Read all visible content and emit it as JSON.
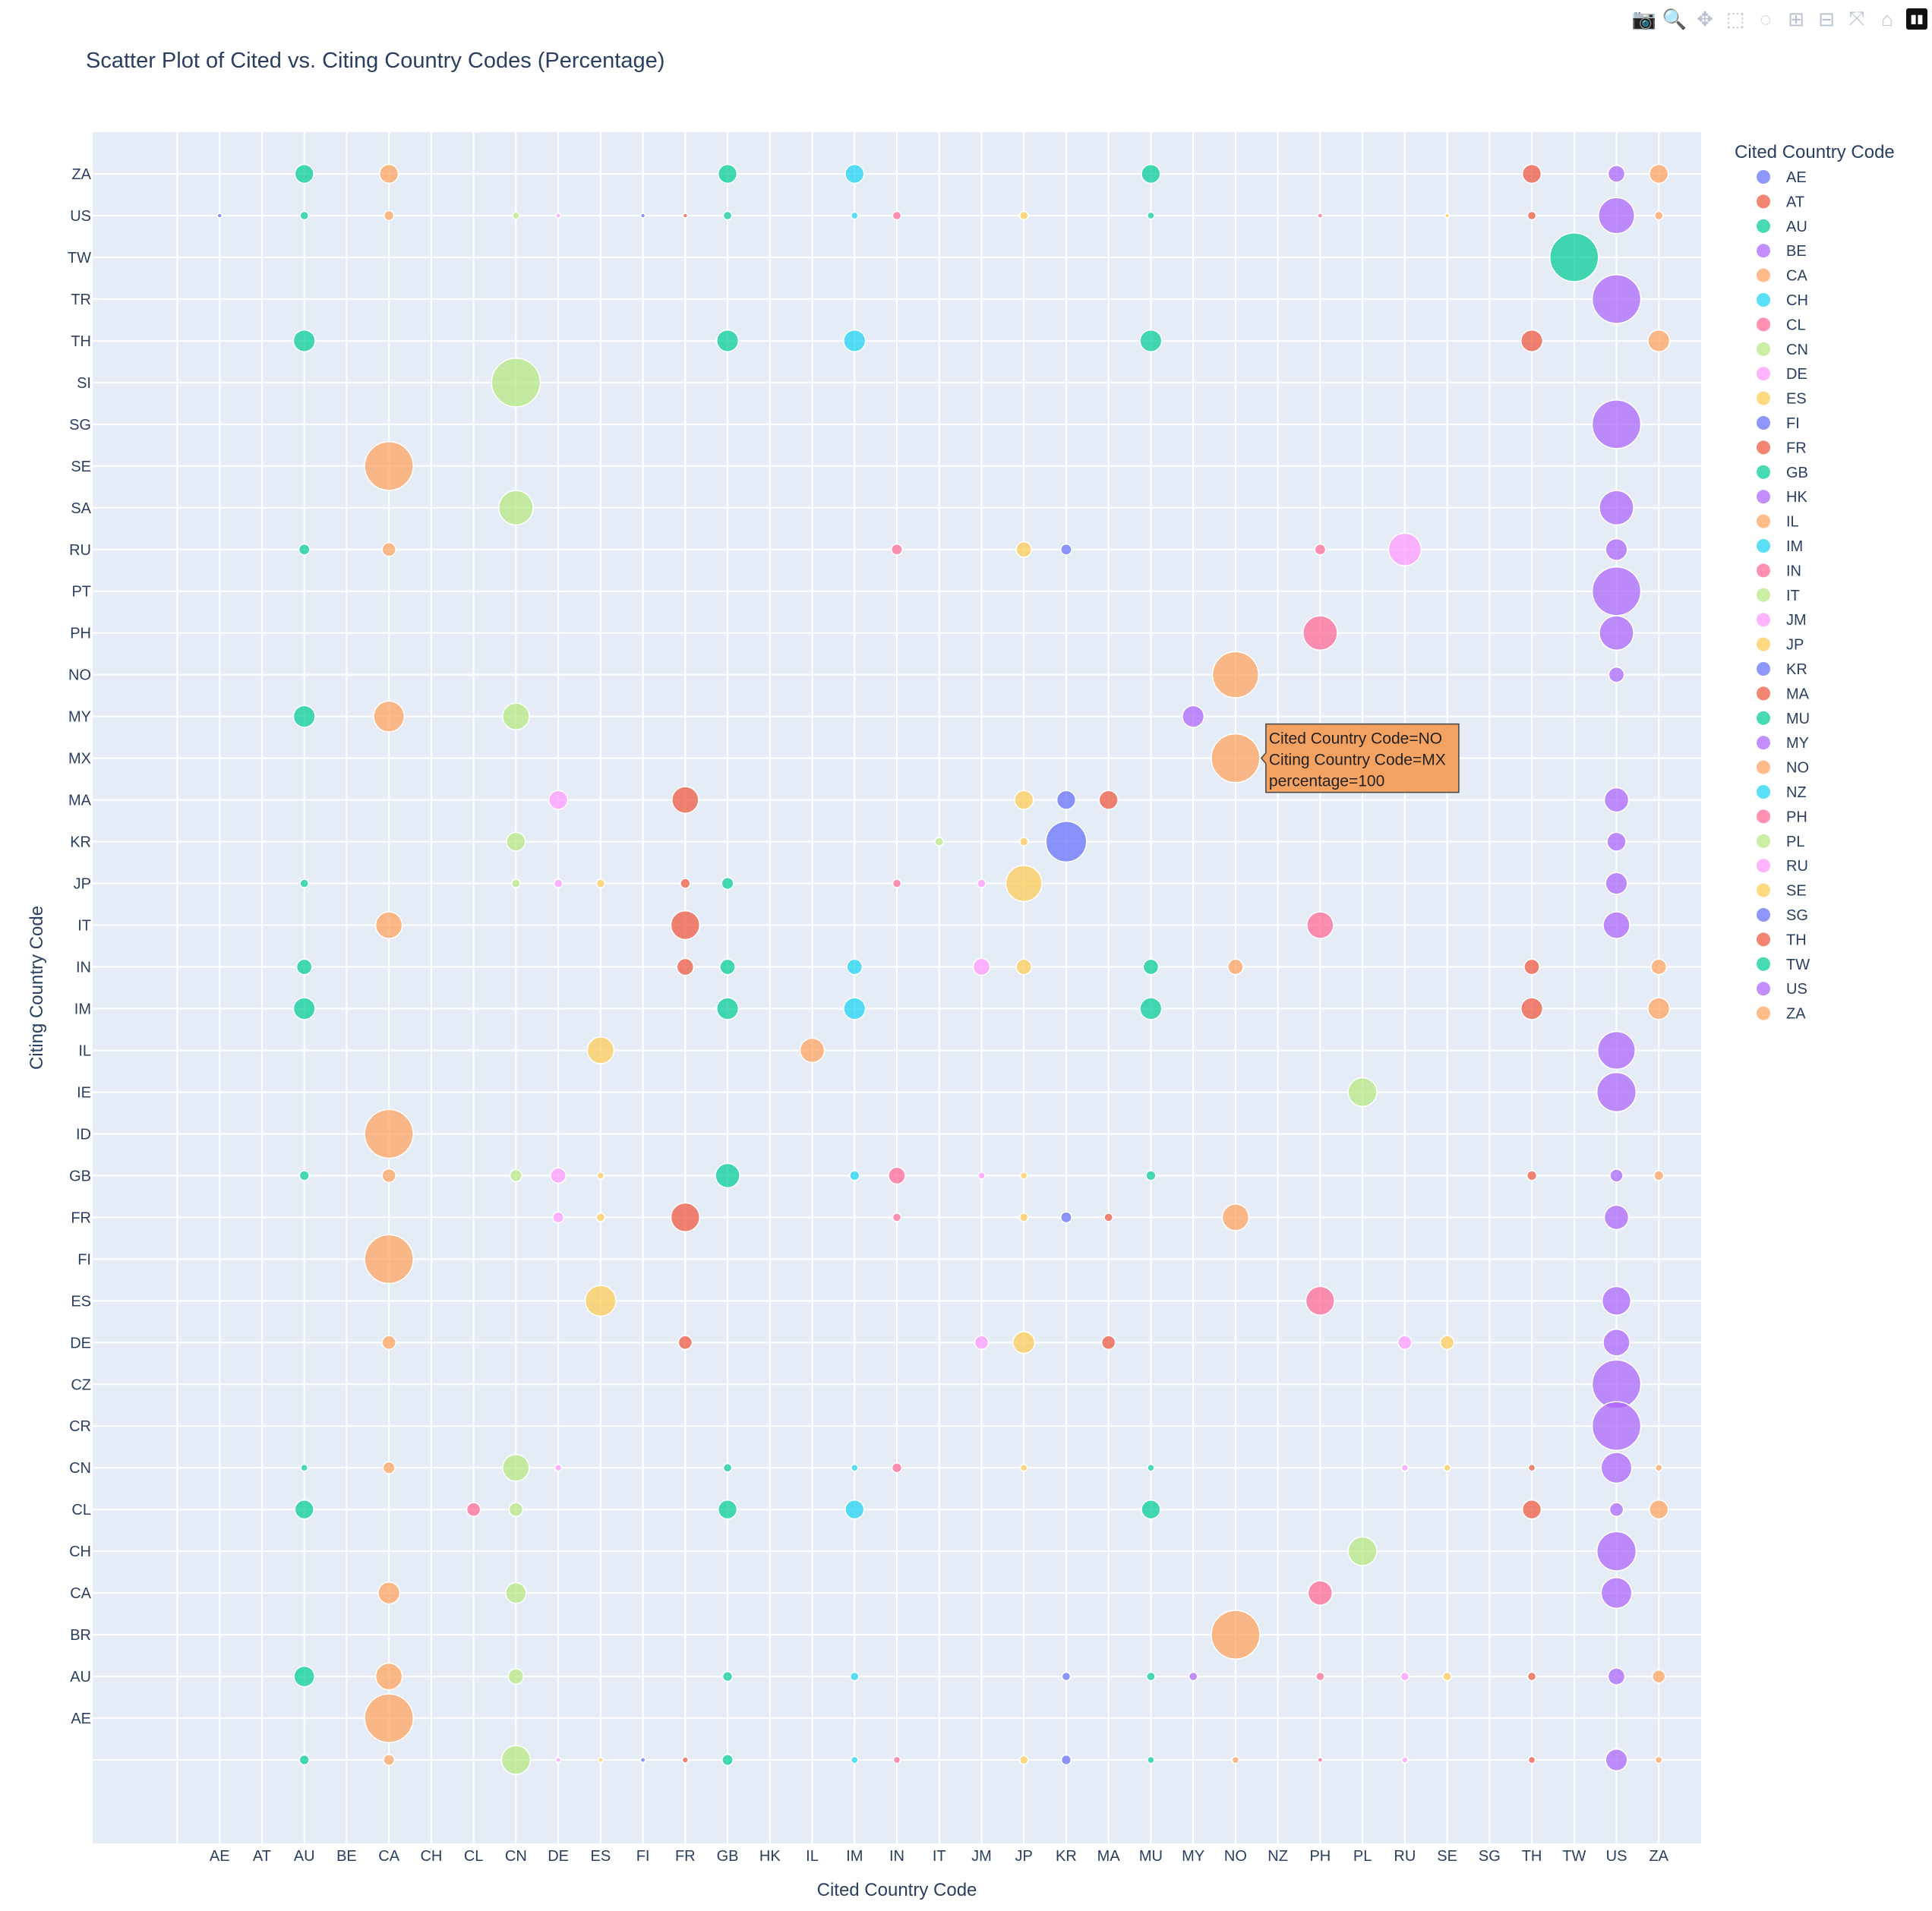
{
  "modebar": [
    {
      "name": "camera-icon",
      "glyph": "📷"
    },
    {
      "name": "zoom-icon",
      "glyph": "🔍"
    },
    {
      "name": "pan-icon",
      "glyph": "✥"
    },
    {
      "name": "box-select-icon",
      "glyph": "⬚"
    },
    {
      "name": "lasso-select-icon",
      "glyph": "◌"
    },
    {
      "name": "zoom-in-icon",
      "glyph": "⊞"
    },
    {
      "name": "zoom-out-icon",
      "glyph": "⊟"
    },
    {
      "name": "autoscale-icon",
      "glyph": "⤧"
    },
    {
      "name": "reset-axes-icon",
      "glyph": "⌂"
    },
    {
      "name": "plotly-logo-icon",
      "glyph": "▮▮"
    }
  ],
  "chart_data": {
    "type": "scatter",
    "title": "Scatter Plot of Cited vs. Citing Country Codes (Percentage)",
    "xlabel": "Cited Country Code",
    "ylabel": "Citing Country Code",
    "x_categories": [
      "",
      "AE",
      "AT",
      "AU",
      "BE",
      "CA",
      "CH",
      "CL",
      "CN",
      "DE",
      "ES",
      "FI",
      "FR",
      "GB",
      "HK",
      "IL",
      "IM",
      "IN",
      "IT",
      "JM",
      "JP",
      "KR",
      "MA",
      "MU",
      "MY",
      "NO",
      "NZ",
      "PH",
      "PL",
      "RU",
      "SE",
      "SG",
      "TH",
      "TW",
      "US",
      "ZA"
    ],
    "y_categories": [
      "",
      "AE",
      "AU",
      "BR",
      "CA",
      "CH",
      "CL",
      "CN",
      "CR",
      "CZ",
      "DE",
      "ES",
      "FI",
      "FR",
      "GB",
      "ID",
      "IE",
      "IL",
      "IM",
      "IN",
      "IT",
      "JP",
      "KR",
      "MA",
      "MX",
      "MY",
      "NO",
      "PH",
      "PT",
      "RU",
      "SA",
      "SE",
      "SG",
      "SI",
      "TH",
      "TR",
      "TW",
      "US",
      "ZA"
    ],
    "grid": true,
    "legend": {
      "title": "Cited Country Code",
      "placement": "right",
      "entries": [
        {
          "name": "AE",
          "color": "#636efa"
        },
        {
          "name": "AT",
          "color": "#EF553B"
        },
        {
          "name": "AU",
          "color": "#00cc96"
        },
        {
          "name": "BE",
          "color": "#ab63fa"
        },
        {
          "name": "CA",
          "color": "#FFA15A"
        },
        {
          "name": "CH",
          "color": "#19d3f3"
        },
        {
          "name": "CL",
          "color": "#FF6692"
        },
        {
          "name": "CN",
          "color": "#B6E880"
        },
        {
          "name": "DE",
          "color": "#FF97FF"
        },
        {
          "name": "ES",
          "color": "#FECB52"
        },
        {
          "name": "FI",
          "color": "#636efa"
        },
        {
          "name": "FR",
          "color": "#EF553B"
        },
        {
          "name": "GB",
          "color": "#00cc96"
        },
        {
          "name": "HK",
          "color": "#ab63fa"
        },
        {
          "name": "IL",
          "color": "#FFA15A"
        },
        {
          "name": "IM",
          "color": "#19d3f3"
        },
        {
          "name": "IN",
          "color": "#FF6692"
        },
        {
          "name": "IT",
          "color": "#B6E880"
        },
        {
          "name": "JM",
          "color": "#FF97FF"
        },
        {
          "name": "JP",
          "color": "#FECB52"
        },
        {
          "name": "KR",
          "color": "#636efa"
        },
        {
          "name": "MA",
          "color": "#EF553B"
        },
        {
          "name": "MU",
          "color": "#00cc96"
        },
        {
          "name": "MY",
          "color": "#ab63fa"
        },
        {
          "name": "NO",
          "color": "#FFA15A"
        },
        {
          "name": "NZ",
          "color": "#19d3f3"
        },
        {
          "name": "PH",
          "color": "#FF6692"
        },
        {
          "name": "PL",
          "color": "#B6E880"
        },
        {
          "name": "RU",
          "color": "#FF97FF"
        },
        {
          "name": "SE",
          "color": "#FECB52"
        },
        {
          "name": "SG",
          "color": "#636efa"
        },
        {
          "name": "TH",
          "color": "#EF553B"
        },
        {
          "name": "TW",
          "color": "#00cc96"
        },
        {
          "name": "US",
          "color": "#ab63fa"
        },
        {
          "name": "ZA",
          "color": "#FFA15A"
        }
      ]
    },
    "tooltip": {
      "lines": [
        "Cited Country Code=NO",
        "Citing Country Code=MX",
        "percentage=100"
      ],
      "color": "#F4A261",
      "x": "NO",
      "y": "MX"
    },
    "points": [
      {
        "x": "AU",
        "y": "ZA",
        "v": 15
      },
      {
        "x": "CA",
        "y": "ZA",
        "v": 15
      },
      {
        "x": "GB",
        "y": "ZA",
        "v": 15
      },
      {
        "x": "IM",
        "y": "ZA",
        "v": 15
      },
      {
        "x": "MU",
        "y": "ZA",
        "v": 15
      },
      {
        "x": "TH",
        "y": "ZA",
        "v": 15
      },
      {
        "x": "US",
        "y": "ZA",
        "v": 12
      },
      {
        "x": "ZA",
        "y": "ZA",
        "v": 15
      },
      {
        "x": "AE",
        "y": "US",
        "v": 0.5
      },
      {
        "x": "AU",
        "y": "US",
        "v": 3
      },
      {
        "x": "CA",
        "y": "US",
        "v": 4
      },
      {
        "x": "CN",
        "y": "US",
        "v": 2
      },
      {
        "x": "DE",
        "y": "US",
        "v": 1
      },
      {
        "x": "FI",
        "y": "US",
        "v": 0.5
      },
      {
        "x": "FR",
        "y": "US",
        "v": 0.5
      },
      {
        "x": "GB",
        "y": "US",
        "v": 3
      },
      {
        "x": "IM",
        "y": "US",
        "v": 2
      },
      {
        "x": "IN",
        "y": "US",
        "v": 3
      },
      {
        "x": "JP",
        "y": "US",
        "v": 3
      },
      {
        "x": "MU",
        "y": "US",
        "v": 2
      },
      {
        "x": "PH",
        "y": "US",
        "v": 1
      },
      {
        "x": "SE",
        "y": "US",
        "v": 0.5
      },
      {
        "x": "TH",
        "y": "US",
        "v": 3
      },
      {
        "x": "US",
        "y": "US",
        "v": 55
      },
      {
        "x": "ZA",
        "y": "US",
        "v": 3
      },
      {
        "x": "TW",
        "y": "TW",
        "v": 100
      },
      {
        "x": "US",
        "y": "TR",
        "v": 100
      },
      {
        "x": "AU",
        "y": "TH",
        "v": 20
      },
      {
        "x": "GB",
        "y": "TH",
        "v": 20
      },
      {
        "x": "IM",
        "y": "TH",
        "v": 20
      },
      {
        "x": "MU",
        "y": "TH",
        "v": 20
      },
      {
        "x": "TH",
        "y": "TH",
        "v": 20
      },
      {
        "x": "ZA",
        "y": "TH",
        "v": 20
      },
      {
        "x": "CN",
        "y": "SI",
        "v": 100
      },
      {
        "x": "US",
        "y": "SG",
        "v": 100
      },
      {
        "x": "CA",
        "y": "SE",
        "v": 100
      },
      {
        "x": "CN",
        "y": "SA",
        "v": 50
      },
      {
        "x": "US",
        "y": "SA",
        "v": 50
      },
      {
        "x": "AU",
        "y": "RU",
        "v": 5
      },
      {
        "x": "CA",
        "y": "RU",
        "v": 8
      },
      {
        "x": "IN",
        "y": "RU",
        "v": 5
      },
      {
        "x": "JP",
        "y": "RU",
        "v": 10
      },
      {
        "x": "KR",
        "y": "RU",
        "v": 5
      },
      {
        "x": "PH",
        "y": "RU",
        "v": 5
      },
      {
        "x": "RU",
        "y": "RU",
        "v": 45
      },
      {
        "x": "US",
        "y": "RU",
        "v": 20
      },
      {
        "x": "US",
        "y": "PT",
        "v": 100
      },
      {
        "x": "PH",
        "y": "PH",
        "v": 50
      },
      {
        "x": "US",
        "y": "PH",
        "v": 50
      },
      {
        "x": "NO",
        "y": "NO",
        "v": 90
      },
      {
        "x": "US",
        "y": "NO",
        "v": 10
      },
      {
        "x": "AU",
        "y": "MY",
        "v": 20
      },
      {
        "x": "CA",
        "y": "MY",
        "v": 40
      },
      {
        "x": "CN",
        "y": "MY",
        "v": 30
      },
      {
        "x": "MY",
        "y": "MY",
        "v": 20
      },
      {
        "x": "NO",
        "y": "MX",
        "v": 100
      },
      {
        "x": "DE",
        "y": "MA",
        "v": 15
      },
      {
        "x": "FR",
        "y": "MA",
        "v": 30
      },
      {
        "x": "JP",
        "y": "MA",
        "v": 15
      },
      {
        "x": "KR",
        "y": "MA",
        "v": 15
      },
      {
        "x": "MA",
        "y": "MA",
        "v": 15
      },
      {
        "x": "US",
        "y": "MA",
        "v": 25
      },
      {
        "x": "CN",
        "y": "KR",
        "v": 15
      },
      {
        "x": "IT",
        "y": "KR",
        "v": 3
      },
      {
        "x": "JP",
        "y": "KR",
        "v": 3
      },
      {
        "x": "KR",
        "y": "KR",
        "v": 70
      },
      {
        "x": "US",
        "y": "KR",
        "v": 15
      },
      {
        "x": "AU",
        "y": "JP",
        "v": 3
      },
      {
        "x": "CN",
        "y": "JP",
        "v": 3
      },
      {
        "x": "DE",
        "y": "JP",
        "v": 3
      },
      {
        "x": "ES",
        "y": "JP",
        "v": 3
      },
      {
        "x": "FR",
        "y": "JP",
        "v": 4
      },
      {
        "x": "GB",
        "y": "JP",
        "v": 6
      },
      {
        "x": "IN",
        "y": "JP",
        "v": 3
      },
      {
        "x": "JM",
        "y": "JP",
        "v": 3
      },
      {
        "x": "JP",
        "y": "JP",
        "v": 55
      },
      {
        "x": "US",
        "y": "JP",
        "v": 20
      },
      {
        "x": "CA",
        "y": "IT",
        "v": 30
      },
      {
        "x": "FR",
        "y": "IT",
        "v": 35
      },
      {
        "x": "PH",
        "y": "IT",
        "v": 30
      },
      {
        "x": "US",
        "y": "IT",
        "v": 30
      },
      {
        "x": "AU",
        "y": "IN",
        "v": 10
      },
      {
        "x": "FR",
        "y": "IN",
        "v": 12
      },
      {
        "x": "GB",
        "y": "IN",
        "v": 10
      },
      {
        "x": "IM",
        "y": "IN",
        "v": 10
      },
      {
        "x": "JM",
        "y": "IN",
        "v": 12
      },
      {
        "x": "JP",
        "y": "IN",
        "v": 10
      },
      {
        "x": "MU",
        "y": "IN",
        "v": 10
      },
      {
        "x": "NO",
        "y": "IN",
        "v": 10
      },
      {
        "x": "TH",
        "y": "IN",
        "v": 10
      },
      {
        "x": "ZA",
        "y": "IN",
        "v": 10
      },
      {
        "x": "AU",
        "y": "IM",
        "v": 20
      },
      {
        "x": "GB",
        "y": "IM",
        "v": 20
      },
      {
        "x": "IM",
        "y": "IM",
        "v": 20
      },
      {
        "x": "MU",
        "y": "IM",
        "v": 20
      },
      {
        "x": "TH",
        "y": "IM",
        "v": 20
      },
      {
        "x": "ZA",
        "y": "IM",
        "v": 20
      },
      {
        "x": "ES",
        "y": "IL",
        "v": 30
      },
      {
        "x": "IL",
        "y": "IL",
        "v": 25
      },
      {
        "x": "US",
        "y": "IL",
        "v": 60
      },
      {
        "x": "PL",
        "y": "IE",
        "v": 35
      },
      {
        "x": "US",
        "y": "IE",
        "v": 65
      },
      {
        "x": "CA",
        "y": "ID",
        "v": 100
      },
      {
        "x": "AU",
        "y": "GB",
        "v": 4
      },
      {
        "x": "CA",
        "y": "GB",
        "v": 8
      },
      {
        "x": "CN",
        "y": "GB",
        "v": 6
      },
      {
        "x": "DE",
        "y": "GB",
        "v": 10
      },
      {
        "x": "ES",
        "y": "GB",
        "v": 2
      },
      {
        "x": "GB",
        "y": "GB",
        "v": 25
      },
      {
        "x": "IM",
        "y": "GB",
        "v": 4
      },
      {
        "x": "IN",
        "y": "GB",
        "v": 12
      },
      {
        "x": "JM",
        "y": "GB",
        "v": 2
      },
      {
        "x": "JP",
        "y": "GB",
        "v": 2
      },
      {
        "x": "MU",
        "y": "GB",
        "v": 4
      },
      {
        "x": "TH",
        "y": "GB",
        "v": 4
      },
      {
        "x": "US",
        "y": "GB",
        "v": 7
      },
      {
        "x": "ZA",
        "y": "GB",
        "v": 4
      },
      {
        "x": "DE",
        "y": "FR",
        "v": 5
      },
      {
        "x": "ES",
        "y": "FR",
        "v": 3
      },
      {
        "x": "FR",
        "y": "FR",
        "v": 35
      },
      {
        "x": "IN",
        "y": "FR",
        "v": 3
      },
      {
        "x": "JP",
        "y": "FR",
        "v": 3
      },
      {
        "x": "KR",
        "y": "FR",
        "v": 5
      },
      {
        "x": "MA",
        "y": "FR",
        "v": 3
      },
      {
        "x": "NO",
        "y": "FR",
        "v": 30
      },
      {
        "x": "US",
        "y": "FR",
        "v": 25
      },
      {
        "x": "CA",
        "y": "FI",
        "v": 100
      },
      {
        "x": "ES",
        "y": "ES",
        "v": 40
      },
      {
        "x": "PH",
        "y": "ES",
        "v": 35
      },
      {
        "x": "US",
        "y": "ES",
        "v": 35
      },
      {
        "x": "CA",
        "y": "DE",
        "v": 8
      },
      {
        "x": "FR",
        "y": "DE",
        "v": 8
      },
      {
        "x": "JM",
        "y": "DE",
        "v": 8
      },
      {
        "x": "JP",
        "y": "DE",
        "v": 20
      },
      {
        "x": "MA",
        "y": "DE",
        "v": 8
      },
      {
        "x": "RU",
        "y": "DE",
        "v": 8
      },
      {
        "x": "SE",
        "y": "DE",
        "v": 8
      },
      {
        "x": "US",
        "y": "DE",
        "v": 30
      },
      {
        "x": "US",
        "y": "CZ",
        "v": 100
      },
      {
        "x": "US",
        "y": "CR",
        "v": 100
      },
      {
        "x": "AU",
        "y": "CN",
        "v": 2
      },
      {
        "x": "CA",
        "y": "CN",
        "v": 6
      },
      {
        "x": "CN",
        "y": "CN",
        "v": 30
      },
      {
        "x": "DE",
        "y": "CN",
        "v": 2
      },
      {
        "x": "GB",
        "y": "CN",
        "v": 3
      },
      {
        "x": "IM",
        "y": "CN",
        "v": 2
      },
      {
        "x": "IN",
        "y": "CN",
        "v": 4
      },
      {
        "x": "JP",
        "y": "CN",
        "v": 2
      },
      {
        "x": "MU",
        "y": "CN",
        "v": 2
      },
      {
        "x": "RU",
        "y": "CN",
        "v": 2
      },
      {
        "x": "SE",
        "y": "CN",
        "v": 2
      },
      {
        "x": "TH",
        "y": "CN",
        "v": 2
      },
      {
        "x": "US",
        "y": "CN",
        "v": 40
      },
      {
        "x": "ZA",
        "y": "CN",
        "v": 2
      },
      {
        "x": "AU",
        "y": "CL",
        "v": 15
      },
      {
        "x": "CL",
        "y": "CL",
        "v": 8
      },
      {
        "x": "CN",
        "y": "CL",
        "v": 8
      },
      {
        "x": "GB",
        "y": "CL",
        "v": 15
      },
      {
        "x": "IM",
        "y": "CL",
        "v": 15
      },
      {
        "x": "MU",
        "y": "CL",
        "v": 15
      },
      {
        "x": "TH",
        "y": "CL",
        "v": 15
      },
      {
        "x": "US",
        "y": "CL",
        "v": 8
      },
      {
        "x": "ZA",
        "y": "CL",
        "v": 15
      },
      {
        "x": "PL",
        "y": "CH",
        "v": 35
      },
      {
        "x": "US",
        "y": "CH",
        "v": 65
      },
      {
        "x": "CA",
        "y": "CA",
        "v": 20
      },
      {
        "x": "CN",
        "y": "CA",
        "v": 18
      },
      {
        "x": "PH",
        "y": "CA",
        "v": 25
      },
      {
        "x": "US",
        "y": "CA",
        "v": 40
      },
      {
        "x": "NO",
        "y": "BR",
        "v": 100
      },
      {
        "x": "AU",
        "y": "AU",
        "v": 18
      },
      {
        "x": "CA",
        "y": "AU",
        "v": 30
      },
      {
        "x": "CN",
        "y": "AU",
        "v": 10
      },
      {
        "x": "GB",
        "y": "AU",
        "v": 4
      },
      {
        "x": "IM",
        "y": "AU",
        "v": 3
      },
      {
        "x": "KR",
        "y": "AU",
        "v": 3
      },
      {
        "x": "MU",
        "y": "AU",
        "v": 3
      },
      {
        "x": "MY",
        "y": "AU",
        "v": 3
      },
      {
        "x": "PH",
        "y": "AU",
        "v": 3
      },
      {
        "x": "RU",
        "y": "AU",
        "v": 3
      },
      {
        "x": "SE",
        "y": "AU",
        "v": 3
      },
      {
        "x": "TH",
        "y": "AU",
        "v": 3
      },
      {
        "x": "US",
        "y": "AU",
        "v": 12
      },
      {
        "x": "ZA",
        "y": "AU",
        "v": 7
      },
      {
        "x": "CA",
        "y": "AE",
        "v": 100
      },
      {
        "x": "AU",
        "y": "",
        "v": 4
      },
      {
        "x": "CA",
        "y": "",
        "v": 5
      },
      {
        "x": "CN",
        "y": "",
        "v": 35
      },
      {
        "x": "DE",
        "y": "",
        "v": 1
      },
      {
        "x": "ES",
        "y": "",
        "v": 1
      },
      {
        "x": "FI",
        "y": "",
        "v": 1
      },
      {
        "x": "FR",
        "y": "",
        "v": 1.5
      },
      {
        "x": "GB",
        "y": "",
        "v": 5
      },
      {
        "x": "IM",
        "y": "",
        "v": 2
      },
      {
        "x": "IN",
        "y": "",
        "v": 2
      },
      {
        "x": "JP",
        "y": "",
        "v": 3
      },
      {
        "x": "KR",
        "y": "",
        "v": 4
      },
      {
        "x": "MU",
        "y": "",
        "v": 2
      },
      {
        "x": "NO",
        "y": "",
        "v": 2
      },
      {
        "x": "PH",
        "y": "",
        "v": 1
      },
      {
        "x": "RU",
        "y": "",
        "v": 1.5
      },
      {
        "x": "TH",
        "y": "",
        "v": 2
      },
      {
        "x": "US",
        "y": "",
        "v": 20
      },
      {
        "x": "ZA",
        "y": "",
        "v": 2
      }
    ]
  }
}
